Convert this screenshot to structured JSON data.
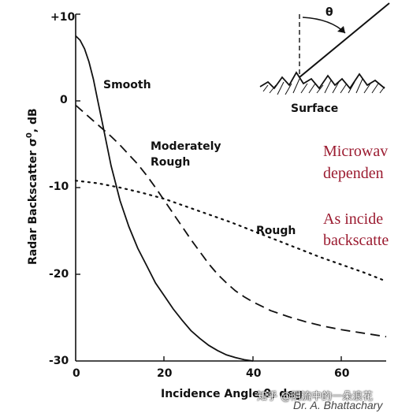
{
  "chart_data": {
    "type": "line",
    "xlabel": "Incidence Angle θ, deg",
    "ylabel": "Radar Backscatter σ",
    "ylabel_superscript": "0",
    "ylabel_unit": ", dB",
    "xlim": [
      0,
      70
    ],
    "ylim": [
      -30,
      10
    ],
    "xticks": [
      "0",
      "20",
      "40",
      "60"
    ],
    "yticks": [
      "+10",
      "0",
      "-10",
      "-20",
      "-30"
    ],
    "grid": false,
    "series": [
      {
        "name": "Smooth",
        "style": "solid",
        "x": [
          0,
          1,
          2,
          3,
          4,
          5,
          6,
          7,
          8,
          9,
          10,
          12,
          14,
          16,
          18,
          20,
          22,
          24,
          26,
          28,
          30,
          32,
          34,
          36,
          38,
          40
        ],
        "y": [
          7.5,
          7,
          6,
          4.5,
          2.5,
          0,
          -2.5,
          -5,
          -7.5,
          -9.5,
          -11.5,
          -14.5,
          -17,
          -19,
          -21,
          -22.5,
          -24,
          -25.3,
          -26.5,
          -27.4,
          -28.2,
          -28.8,
          -29.3,
          -29.6,
          -29.85,
          -30
        ]
      },
      {
        "name": "Moderately Rough",
        "style": "dashed",
        "x": [
          0,
          2,
          4,
          6,
          8,
          10,
          12,
          14,
          16,
          18,
          20,
          22,
          24,
          26,
          28,
          30,
          32,
          34,
          36,
          38,
          40,
          44,
          48,
          52,
          56,
          60,
          65,
          70
        ],
        "y": [
          -0.5,
          -1.4,
          -2.3,
          -3.2,
          -4.1,
          -5.1,
          -6.2,
          -7.3,
          -8.6,
          -10,
          -11.5,
          -13,
          -14.5,
          -16,
          -17.4,
          -18.8,
          -20,
          -21,
          -21.9,
          -22.6,
          -23.2,
          -24.2,
          -24.9,
          -25.5,
          -26,
          -26.4,
          -26.8,
          -27.2
        ]
      },
      {
        "name": "Rough",
        "style": "dotted",
        "x": [
          0,
          5,
          10,
          15,
          20,
          25,
          30,
          35,
          40,
          45,
          50,
          55,
          60,
          65,
          70
        ],
        "y": [
          -9.2,
          -9.5,
          -10.0,
          -10.6,
          -11.3,
          -12.2,
          -13.1,
          -14.0,
          -15.0,
          -16.0,
          -17.0,
          -18.0,
          -18.9,
          -19.8,
          -20.8
        ]
      }
    ],
    "curve_labels": [
      "Smooth",
      "Moderately",
      "Rough",
      "Rough"
    ]
  },
  "inset": {
    "theta_label": "θ",
    "surface_label": "Surface"
  },
  "side_text": {
    "line1": "Microwav",
    "line2": "dependen",
    "line3": "As incide",
    "line4": "backscatte"
  },
  "credit": "Dr. A. Bhattachary",
  "watermark": "知乎 @阴流中的一朵浪花",
  "colors": {
    "ink": "#111111",
    "side_text": "#9b1b30"
  }
}
